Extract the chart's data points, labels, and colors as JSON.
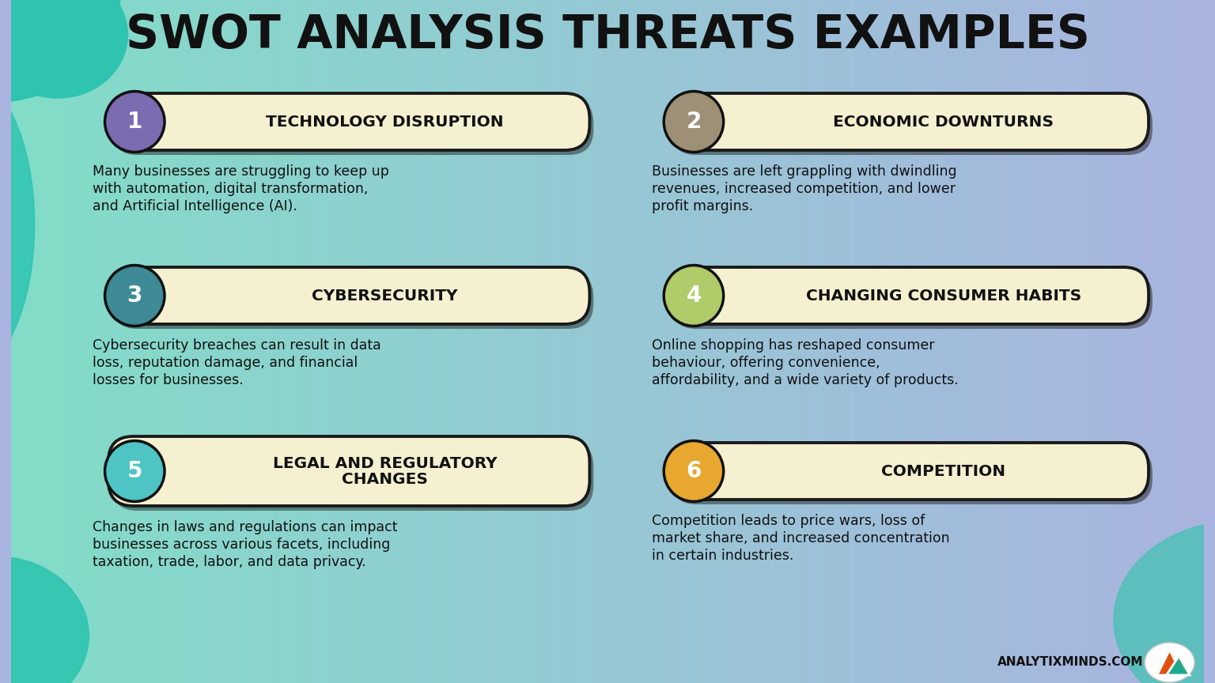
{
  "title": "SWOT ANALYSIS THREATS EXAMPLES",
  "items": [
    {
      "number": "1",
      "circle_color": "#7b6bb0",
      "header": "TECHNOLOGY DISRUPTION",
      "header_lines": [
        "TECHNOLOGY DISRUPTION"
      ],
      "description": "Many businesses are struggling to keep up\nwith automation, digital transformation,\nand Artificial Intelligence (AI).",
      "col": 0,
      "row": 0
    },
    {
      "number": "2",
      "circle_color": "#9e9077",
      "header": "ECONOMIC DOWNTURNS",
      "header_lines": [
        "ECONOMIC DOWNTURNS"
      ],
      "description": "Businesses are left grappling with dwindling\nrevenues, increased competition, and lower\nprofit margins.",
      "col": 1,
      "row": 0
    },
    {
      "number": "3",
      "circle_color": "#3e8a96",
      "header": "CYBERSECURITY",
      "header_lines": [
        "CYBERSECURITY"
      ],
      "description": "Cybersecurity breaches can result in data\nloss, reputation damage, and financial\nlosses for businesses.",
      "col": 0,
      "row": 1
    },
    {
      "number": "4",
      "circle_color": "#b0cc6a",
      "header": "CHANGING CONSUMER HABITS",
      "header_lines": [
        "CHANGING CONSUMER HABITS"
      ],
      "description": "Online shopping has reshaped consumer\nbehaviour, offering convenience,\naffordability, and a wide variety of products.",
      "col": 1,
      "row": 1
    },
    {
      "number": "5",
      "circle_color": "#4ec4c4",
      "header": "LEGAL AND REGULATORY\nCHANGES",
      "header_lines": [
        "LEGAL AND REGULATORY",
        "CHANGES"
      ],
      "description": "Changes in laws and regulations can impact\nbusinesses across various facets, including\ntaxation, trade, labor, and data privacy.",
      "col": 0,
      "row": 2
    },
    {
      "number": "6",
      "circle_color": "#e8a830",
      "header": "COMPETITION",
      "header_lines": [
        "COMPETITION"
      ],
      "description": "Competition leads to price wars, loss of\nmarket share, and increased concentration\nin certain industries.",
      "col": 1,
      "row": 2
    }
  ],
  "box_fill": "#f5f0d0",
  "box_border": "#1a1a1a",
  "header_fontsize": 14.5,
  "desc_fontsize": 12.5,
  "number_fontsize": 20,
  "title_fontsize": 42,
  "footer_text": "ANALYTIXMINDS.COM",
  "footer_fontsize": 11,
  "bg_left": "#82ddc8",
  "bg_right": "#aab4e0",
  "blob_color": "#2ec4b0",
  "blob_color2": "#50c0b8"
}
